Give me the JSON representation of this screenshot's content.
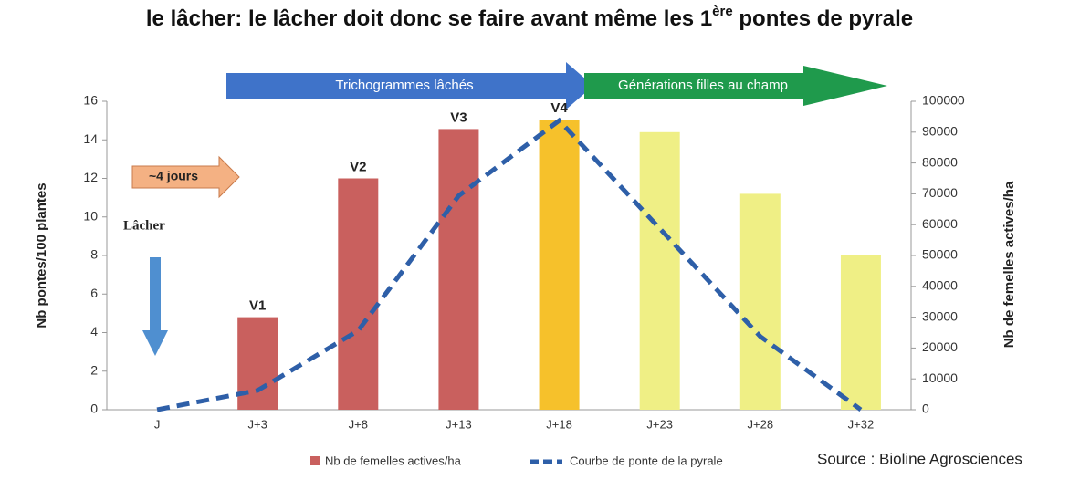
{
  "chart_data": {
    "type": "bar",
    "title": "le lâcher:  le lâcher doit donc se faire avant même les 1",
    "title_sup": "ère",
    "title_end": " pontes de pyrale",
    "ylabel": "Nb pontes/100 plantes",
    "y2label": "Nb de femelles actives/ha",
    "categories": [
      "J",
      "J+3",
      "J+8",
      "J+13",
      "J+18",
      "J+23",
      "J+28",
      "J+32"
    ],
    "series": [
      {
        "name": "Nb de femelles actives/ha",
        "type": "bar",
        "axis": "y2",
        "colors": [
          "#c9605e",
          "#c9605e",
          "#c9605e",
          "#c9605e",
          "#f6c12b",
          "#efef85",
          "#efef85",
          "#efef85"
        ],
        "values": [
          null,
          30000,
          75000,
          91000,
          94000,
          90000,
          70000,
          50000
        ]
      },
      {
        "name": "Courbe de ponte de la pyrale",
        "type": "line",
        "axis": "y",
        "color": "#2e5fa8",
        "values": [
          0,
          1,
          4.1,
          11.1,
          15,
          9.4,
          3.8,
          0
        ]
      }
    ],
    "bar_labels": [
      null,
      "V1",
      "V2",
      "V3",
      "V4",
      null,
      null,
      null
    ],
    "ylim": [
      0,
      16
    ],
    "yticks": [
      0,
      2,
      4,
      6,
      8,
      10,
      12,
      14,
      16
    ],
    "y2lim": [
      0,
      100000
    ],
    "y2ticks": [
      0,
      10000,
      20000,
      30000,
      40000,
      50000,
      60000,
      70000,
      80000,
      90000,
      100000
    ],
    "annotations": {
      "arrow_blue": "Trichogrammes lâchés",
      "arrow_green": "Générations filles au champ",
      "delay": "~4 jours",
      "release": "Lâcher"
    },
    "source": "Source : Bioline Agrosciences"
  }
}
